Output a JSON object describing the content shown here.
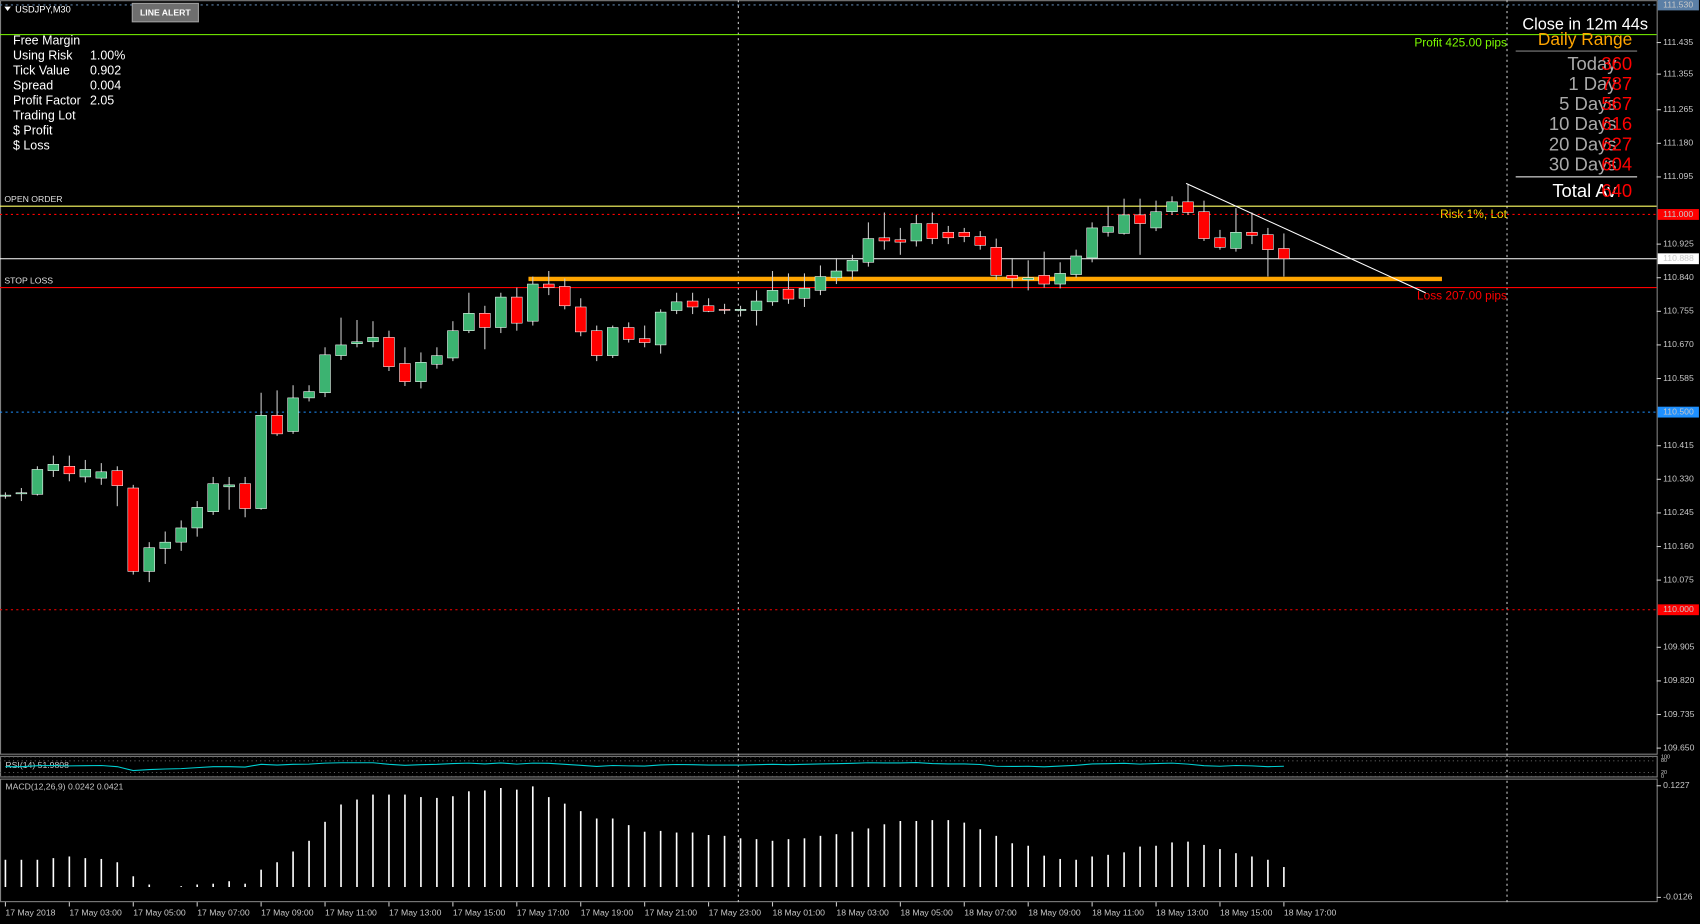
{
  "window": {
    "symbol": "USDJPY,M30",
    "button": "LINE ALERT"
  },
  "info_panel": [
    {
      "label": "Free Margin"
    },
    {
      "label": "Using Risk",
      "value": "1.00%",
      "color": "#ff0000"
    },
    {
      "label": "Tick Value",
      "value": "0.902"
    },
    {
      "label": "Spread",
      "value": "0.004"
    },
    {
      "label": "Profit Factor",
      "value": "2.05",
      "color": "#00a000"
    },
    {
      "label": "Trading Lot"
    },
    {
      "label": "$ Profit"
    },
    {
      "label": "$ Loss"
    }
  ],
  "daily_range": {
    "countdown": "Close in 12m 44s",
    "title": "Daily Range",
    "rows": [
      {
        "label": "Today",
        "value": 360
      },
      {
        "label": "1 Day",
        "value": 787
      },
      {
        "label": "5 Days",
        "value": 567
      },
      {
        "label": "10 Days",
        "value": 616
      },
      {
        "label": "20 Days",
        "value": 627
      },
      {
        "label": "30 Days",
        "value": 604
      }
    ],
    "total": {
      "label": "Total Av",
      "value": 640
    }
  },
  "chart_data": [
    {
      "type": "candlestick",
      "categories": [
        "17 May 2018",
        null,
        null,
        null,
        "17 May 03:00",
        null,
        null,
        null,
        "17 May 05:00",
        null,
        null,
        null,
        "17 May 07:00",
        null,
        null,
        null,
        "17 May 09:00",
        null,
        null,
        null,
        "17 May 11:00",
        null,
        null,
        null,
        "17 May 13:00",
        null,
        null,
        null,
        "17 May 15:00",
        null,
        null,
        null,
        "17 May 17:00",
        null,
        null,
        null,
        "17 May 19:00",
        null,
        null,
        null,
        "17 May 21:00",
        null,
        null,
        null,
        "17 May 23:00",
        null,
        null,
        null,
        "18 May 01:00",
        null,
        null,
        null,
        "18 May 03:00",
        null,
        null,
        null,
        "18 May 05:00",
        null,
        null,
        null,
        "18 May 07:00",
        null,
        null,
        null,
        "18 May 09:00",
        null,
        null,
        null,
        "18 May 11:00",
        null,
        null,
        null,
        "18 May 13:00",
        null,
        null,
        null,
        "18 May 15:00",
        null,
        null,
        null,
        "18 May 17:00"
      ],
      "open": [
        110.289,
        110.294,
        110.292,
        110.352,
        110.363,
        110.336,
        110.333,
        110.352,
        110.308,
        110.097,
        110.155,
        110.171,
        110.207,
        110.248,
        110.311,
        110.319,
        110.256,
        110.492,
        110.451,
        110.536,
        110.549,
        110.643,
        110.673,
        110.678,
        110.689,
        110.623,
        110.577,
        110.621,
        110.637,
        110.706,
        110.75,
        110.714,
        110.791,
        110.73,
        110.824,
        110.818,
        110.766,
        110.706,
        110.643,
        110.714,
        110.686,
        110.67,
        110.757,
        110.781,
        110.769,
        110.76,
        110.757,
        110.757,
        110.779,
        110.811,
        110.788,
        110.808,
        110.84,
        110.857,
        110.879,
        110.941,
        110.936,
        110.933,
        110.977,
        110.955,
        110.955,
        110.944,
        110.917,
        110.846,
        110.835,
        110.846,
        110.824,
        110.848,
        110.89,
        110.955,
        110.952,
        110.999,
        110.966,
        111.007,
        111.032,
        111.007,
        110.941,
        110.914,
        110.955,
        110.949,
        110.914
      ],
      "high": [
        110.297,
        110.308,
        110.363,
        110.39,
        110.39,
        110.379,
        110.371,
        110.363,
        110.316,
        110.171,
        110.198,
        110.226,
        110.275,
        110.336,
        110.336,
        110.336,
        110.549,
        110.555,
        110.568,
        110.568,
        110.664,
        110.739,
        110.733,
        110.73,
        110.706,
        110.664,
        110.651,
        110.664,
        110.73,
        110.802,
        110.769,
        110.802,
        110.815,
        110.843,
        110.857,
        110.838,
        110.788,
        110.719,
        110.719,
        110.727,
        110.719,
        110.76,
        110.802,
        110.802,
        110.788,
        110.774,
        110.769,
        110.808,
        110.857,
        110.851,
        110.851,
        110.871,
        110.89,
        110.898,
        110.98,
        111.005,
        110.966,
        110.999,
        111.005,
        110.971,
        110.966,
        110.958,
        110.939,
        110.89,
        110.884,
        110.906,
        110.879,
        110.911,
        110.98,
        111.021,
        111.04,
        111.04,
        111.035,
        111.046,
        111.076,
        111.035,
        110.961,
        111.016,
        111.005,
        110.966,
        110.952
      ],
      "low": [
        110.281,
        110.275,
        110.289,
        110.336,
        110.325,
        110.322,
        110.316,
        110.262,
        110.089,
        110.07,
        110.116,
        110.149,
        110.185,
        110.24,
        110.253,
        110.234,
        110.253,
        110.44,
        110.445,
        110.527,
        110.538,
        110.632,
        110.664,
        110.664,
        110.604,
        110.566,
        110.56,
        110.61,
        110.629,
        110.7,
        110.659,
        110.7,
        110.706,
        110.719,
        110.796,
        110.76,
        110.692,
        110.629,
        110.637,
        110.676,
        110.664,
        110.648,
        110.748,
        110.748,
        110.753,
        110.748,
        110.742,
        110.719,
        110.769,
        110.774,
        110.766,
        110.796,
        110.824,
        110.835,
        110.868,
        110.911,
        110.898,
        110.919,
        110.925,
        110.925,
        110.93,
        110.911,
        110.835,
        110.815,
        110.808,
        110.815,
        110.813,
        110.84,
        110.879,
        110.944,
        110.949,
        110.898,
        110.958,
        110.999,
        110.999,
        110.933,
        110.911,
        110.906,
        110.925,
        110.843,
        110.843
      ],
      "close": [
        110.29,
        110.296,
        110.355,
        110.368,
        110.344,
        110.355,
        110.349,
        110.314,
        110.097,
        110.157,
        110.171,
        110.207,
        110.259,
        110.319,
        110.316,
        110.256,
        110.492,
        110.445,
        110.536,
        110.552,
        110.645,
        110.67,
        110.678,
        110.689,
        110.615,
        110.577,
        110.626,
        110.643,
        110.706,
        110.75,
        110.714,
        110.791,
        110.725,
        110.824,
        110.815,
        110.769,
        110.703,
        110.643,
        110.714,
        110.684,
        110.676,
        110.753,
        110.779,
        110.766,
        110.755,
        110.759,
        110.76,
        110.781,
        110.808,
        110.786,
        110.813,
        110.843,
        110.857,
        110.884,
        110.939,
        110.933,
        110.93,
        110.977,
        110.939,
        110.941,
        110.944,
        110.922,
        110.846,
        110.838,
        110.84,
        110.824,
        110.851,
        110.895,
        110.966,
        110.969,
        110.999,
        110.977,
        111.007,
        111.032,
        111.005,
        110.939,
        110.917,
        110.955,
        110.947,
        110.911,
        110.888
      ],
      "up_color": "#3cb371",
      "down_color": "#ff0000",
      "wick_color": "#c8c8c8",
      "ylim": [
        109.636,
        111.534
      ],
      "yticks": [
        111.435,
        111.355,
        111.265,
        {
          "value": 111.18,
          "label": "111.180"
        },
        111.095,
        110.925,
        {
          "value": 110.84,
          "label": "110.840"
        },
        110.755,
        {
          "value": 110.67,
          "label": "110.670"
        },
        110.585,
        110.415,
        {
          "value": 110.33,
          "label": "110.330"
        },
        110.245,
        {
          "value": 110.16,
          "label": "110.160"
        },
        110.075,
        109.905,
        {
          "value": 109.82,
          "label": "109.820"
        },
        109.735,
        {
          "value": 109.65,
          "label": "109.650"
        }
      ],
      "levels": [
        {
          "value": 111.455,
          "color": "#7cfc00",
          "style": "solid",
          "right_label": "Profit 425.00 pips"
        },
        {
          "value": 111.53,
          "color": "#5b7fa6",
          "style": "dotted",
          "axis_label": "111.530"
        },
        {
          "value": 111.021,
          "color": "#ffff66",
          "style": "solid",
          "left_label": "OPEN ORDER",
          "right_label": "Risk 1%, Lot",
          "right_color": "#ffd700"
        },
        {
          "value": 111,
          "color": "#ff0000",
          "style": "dotted",
          "axis_label": "111.000"
        },
        {
          "value": 110.888,
          "color": "#ffffff",
          "style": "solid",
          "axis_label": "110.888"
        },
        {
          "value": 110.837,
          "color": "#ffa500",
          "style": "band"
        },
        {
          "value": 110.815,
          "color": "#ff0000",
          "style": "solid",
          "left_label": "STOP LOSS",
          "right_label": "Loss 207.00 pips"
        },
        {
          "value": 110.5,
          "color": "#1e90ff",
          "style": "dotted",
          "axis_label": "110.500"
        },
        {
          "value": 110,
          "color": "#ff0000",
          "style": "dotted",
          "axis_label": "110.000"
        }
      ]
    },
    {
      "type": "line",
      "title": "RSI(14) 51.9808",
      "color": "#00ced1",
      "values": [
        50,
        50,
        55,
        56,
        54,
        55,
        56,
        50,
        30,
        35,
        38,
        40,
        45,
        50,
        50,
        48,
        62,
        58,
        62,
        63,
        68,
        70,
        70,
        70,
        62,
        57,
        60,
        62,
        66,
        68,
        64,
        69,
        63,
        68,
        67,
        62,
        57,
        51,
        56,
        54,
        53,
        59,
        61,
        60,
        58,
        58,
        58,
        60,
        62,
        60,
        62,
        64,
        65,
        67,
        70,
        69,
        69,
        71,
        66,
        64,
        64,
        61,
        52,
        51,
        52,
        49,
        53,
        57,
        64,
        65,
        67,
        63,
        66,
        68,
        63,
        55,
        52,
        56,
        54,
        50,
        51.9808
      ],
      "ylim": [
        0,
        100
      ],
      "yticks": [
        100,
        80,
        20,
        0
      ]
    },
    {
      "type": "bar",
      "title": "MACD(12,26,9) 0.0242 0.0421",
      "color": "#ffffff",
      "values": [
        0.033,
        0.033,
        0.033,
        0.035,
        0.037,
        0.035,
        0.034,
        0.03,
        0.013,
        0.003,
        0,
        0.001,
        0.003,
        0.004,
        0.007,
        0.004,
        0.021,
        0.03,
        0.043,
        0.056,
        0.079,
        0.1,
        0.106,
        0.112,
        0.112,
        0.112,
        0.109,
        0.108,
        0.11,
        0.116,
        0.117,
        0.12,
        0.118,
        0.122,
        0.109,
        0.101,
        0.092,
        0.083,
        0.083,
        0.075,
        0.067,
        0.068,
        0.066,
        0.066,
        0.063,
        0.062,
        0.059,
        0.058,
        0.056,
        0.058,
        0.059,
        0.062,
        0.064,
        0.067,
        0.071,
        0.076,
        0.08,
        0.08,
        0.081,
        0.081,
        0.078,
        0.07,
        0.062,
        0.053,
        0.05,
        0.038,
        0.034,
        0.033,
        0.037,
        0.039,
        0.042,
        0.049,
        0.05,
        0.054,
        0.055,
        0.051,
        0.046,
        0.041,
        0.037,
        0.033,
        0.0242
      ],
      "ylim": [
        -0.0184,
        0.1314
      ],
      "yticks": [
        0.1227,
        -0.0126
      ]
    }
  ]
}
